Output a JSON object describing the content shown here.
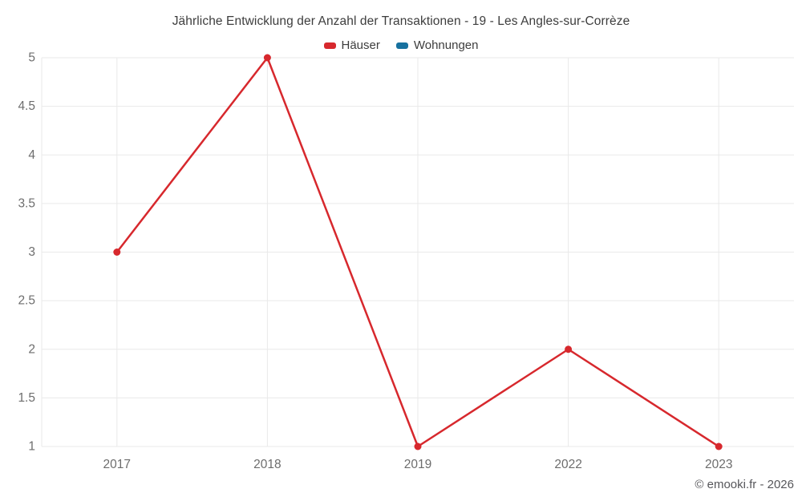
{
  "title": "Jährliche Entwicklung der Anzahl der Transaktionen - 19 - Les Angles-sur-Corrèze",
  "legend": [
    {
      "label": "Häuser",
      "color": "#d7282d"
    },
    {
      "label": "Wohnungen",
      "color": "#17719f"
    }
  ],
  "footer": "© emooki.fr - 2026",
  "chart_data": {
    "type": "line",
    "title": "Jährliche Entwicklung der Anzahl der Transaktionen - 19 - Les Angles-sur-Corrèze",
    "categories": [
      "2017",
      "2018",
      "2019",
      "2022",
      "2023"
    ],
    "series": [
      {
        "name": "Häuser",
        "color": "#d7282d",
        "values": [
          3,
          5,
          1,
          2,
          1
        ]
      },
      {
        "name": "Wohnungen",
        "color": "#17719f",
        "values": []
      }
    ],
    "xlabel": "",
    "ylabel": "",
    "ylim": [
      1,
      5
    ],
    "ytick_step": 0.5,
    "yticks": [
      "1",
      "1.5",
      "2",
      "2.5",
      "3",
      "3.5",
      "4",
      "4.5",
      "5"
    ],
    "grid": true,
    "legend_position": "top"
  },
  "colors": {
    "grid": "#e9e9e9",
    "tick_text": "#6d6d6d",
    "title_text": "#3d3d3d",
    "footer_text": "#56565a",
    "background": "#ffffff"
  }
}
